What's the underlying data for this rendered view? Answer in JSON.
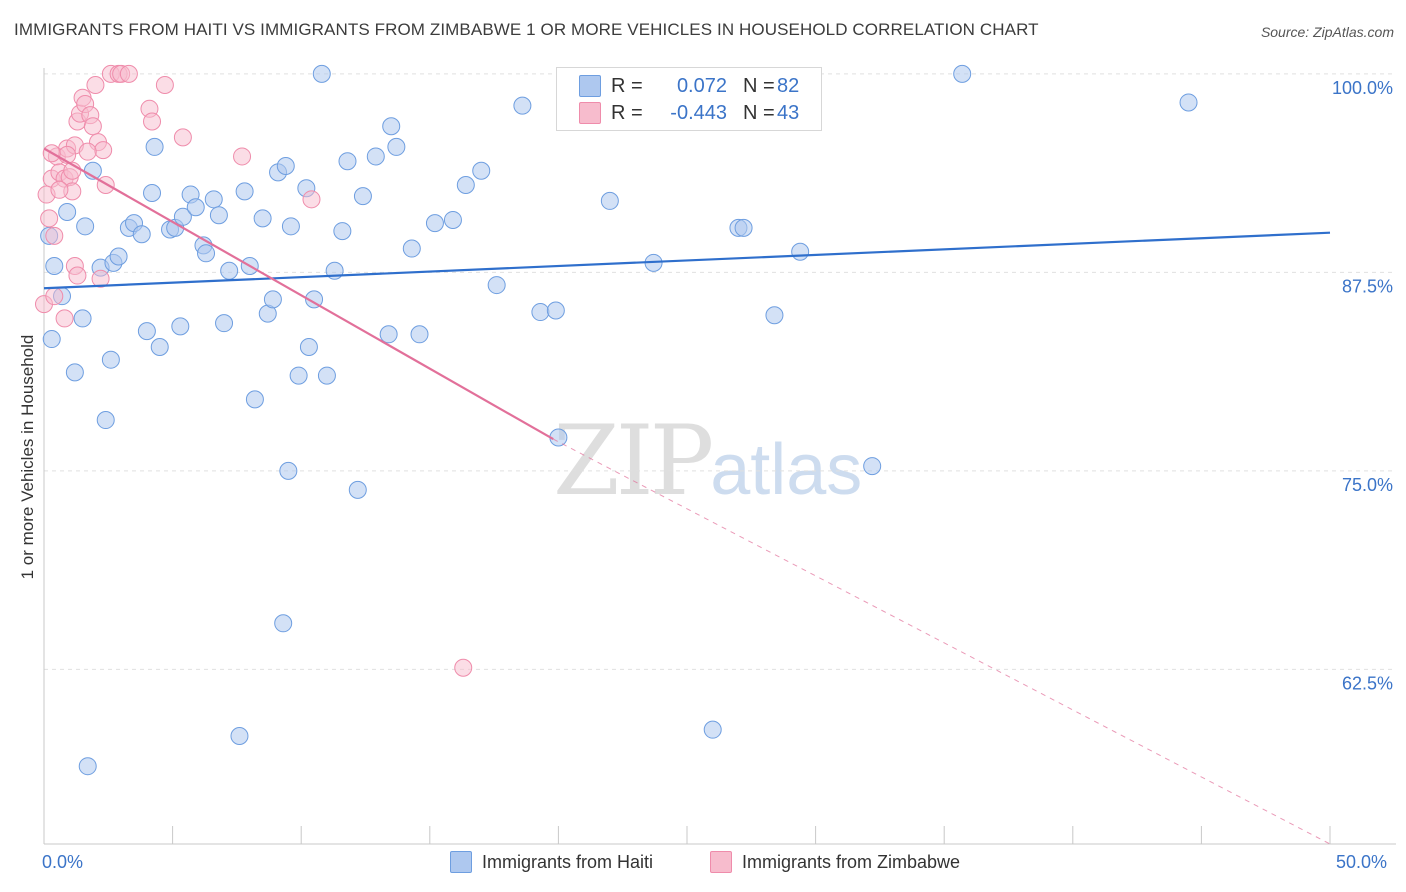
{
  "title": "IMMIGRANTS FROM HAITI VS IMMIGRANTS FROM ZIMBABWE 1 OR MORE VEHICLES IN HOUSEHOLD CORRELATION CHART",
  "source": "Source: ZipAtlas.com",
  "watermark": {
    "zip": "ZIP",
    "atlas": "atlas"
  },
  "legend": {
    "haiti": {
      "r_label": "R =",
      "r_value": "0.072",
      "n_label": "N =",
      "n_value": "82"
    },
    "zimbabwe": {
      "r_label": "R =",
      "r_value": "-0.443",
      "n_label": "N =",
      "n_value": "43"
    }
  },
  "colors": {
    "haiti_fill": "#aec8ef",
    "haiti_stroke": "#6e9ee0",
    "haiti_line": "#2f6fcc",
    "zim_fill": "#f7bccd",
    "zim_stroke": "#ef8cab",
    "zim_line": "#e2709a",
    "tick_text": "#3b74c8",
    "grid": "#e0e0e0"
  },
  "chart_data": {
    "type": "scatter",
    "title": "IMMIGRANTS FROM HAITI VS IMMIGRANTS FROM ZIMBABWE 1 OR MORE VEHICLES IN HOUSEHOLD CORRELATION CHART",
    "xlabel": "",
    "ylabel": "1 or more Vehicles in Household",
    "xlim": [
      0,
      50
    ],
    "ylim": [
      51.5,
      101.0
    ],
    "x_tick_labels": [
      "0.0%",
      "50.0%"
    ],
    "y_ticks": [
      100.0,
      87.5,
      75.0,
      62.5
    ],
    "y_tick_labels": [
      "100.0%",
      "87.5%",
      "75.0%",
      "62.5%"
    ],
    "legend_position": "bottom-center",
    "series": [
      {
        "name": "Immigrants from Haiti",
        "r": 0.072,
        "n": 82,
        "trend": {
          "x0": 0,
          "y0": 86.5,
          "x1": 50,
          "y1": 90.0
        },
        "points": [
          [
            0.2,
            89.8
          ],
          [
            0.4,
            87.9
          ],
          [
            0.7,
            86.0
          ],
          [
            0.9,
            91.3
          ],
          [
            1.2,
            81.2
          ],
          [
            1.5,
            84.6
          ],
          [
            1.6,
            90.4
          ],
          [
            1.9,
            93.9
          ],
          [
            2.2,
            87.8
          ],
          [
            2.4,
            78.2
          ],
          [
            2.7,
            88.1
          ],
          [
            2.9,
            88.5
          ],
          [
            3.3,
            90.3
          ],
          [
            3.5,
            90.6
          ],
          [
            3.8,
            89.9
          ],
          [
            4.0,
            83.8
          ],
          [
            4.2,
            92.5
          ],
          [
            4.3,
            95.4
          ],
          [
            4.5,
            82.8
          ],
          [
            4.9,
            90.2
          ],
          [
            5.1,
            90.3
          ],
          [
            5.3,
            84.1
          ],
          [
            5.4,
            91.0
          ],
          [
            5.7,
            92.4
          ],
          [
            5.9,
            91.6
          ],
          [
            6.2,
            89.2
          ],
          [
            6.3,
            88.7
          ],
          [
            6.6,
            92.1
          ],
          [
            6.8,
            91.1
          ],
          [
            7.0,
            84.3
          ],
          [
            7.2,
            87.6
          ],
          [
            7.6,
            58.3
          ],
          [
            7.8,
            92.6
          ],
          [
            8.0,
            87.9
          ],
          [
            8.2,
            79.5
          ],
          [
            8.5,
            90.9
          ],
          [
            8.7,
            84.9
          ],
          [
            8.9,
            85.8
          ],
          [
            9.1,
            93.8
          ],
          [
            9.5,
            75.0
          ],
          [
            9.6,
            90.4
          ],
          [
            9.9,
            81.0
          ],
          [
            10.2,
            92.8
          ],
          [
            10.3,
            82.8
          ],
          [
            10.5,
            85.8
          ],
          [
            11.0,
            81.0
          ],
          [
            11.3,
            87.6
          ],
          [
            11.6,
            90.1
          ],
          [
            11.8,
            94.5
          ],
          [
            12.4,
            92.3
          ],
          [
            12.9,
            94.8
          ],
          [
            13.4,
            83.6
          ],
          [
            13.5,
            96.7
          ],
          [
            13.7,
            95.4
          ],
          [
            14.3,
            89.0
          ],
          [
            14.6,
            83.6
          ],
          [
            15.2,
            90.6
          ],
          [
            15.9,
            90.8
          ],
          [
            16.4,
            93.0
          ],
          [
            17.0,
            93.9
          ],
          [
            17.6,
            86.7
          ],
          [
            18.6,
            98.0
          ],
          [
            19.3,
            85.0
          ],
          [
            19.9,
            85.1
          ],
          [
            20.0,
            77.1
          ],
          [
            22.0,
            92.0
          ],
          [
            23.7,
            88.1
          ],
          [
            26.0,
            58.7
          ],
          [
            27.0,
            90.3
          ],
          [
            27.2,
            90.3
          ],
          [
            28.4,
            84.8
          ],
          [
            29.4,
            88.8
          ],
          [
            32.2,
            75.3
          ],
          [
            35.7,
            100.0
          ],
          [
            44.5,
            98.2
          ],
          [
            10.8,
            100.0
          ],
          [
            9.4,
            94.2
          ],
          [
            1.7,
            56.4
          ],
          [
            2.6,
            82.0
          ],
          [
            9.3,
            65.4
          ],
          [
            0.3,
            83.3
          ],
          [
            12.2,
            73.8
          ]
        ]
      },
      {
        "name": "Immigrants from Zimbabwe",
        "r": -0.443,
        "n": 43,
        "trend": {
          "x0": 0,
          "y0": 95.3,
          "x1": 19.8,
          "y1": 77.0,
          "dash_x1": 50,
          "dash_y1": 51.5
        },
        "points": [
          [
            0.1,
            92.4
          ],
          [
            0.2,
            90.9
          ],
          [
            0.3,
            93.4
          ],
          [
            0.4,
            89.8
          ],
          [
            0.5,
            94.8
          ],
          [
            0.6,
            93.8
          ],
          [
            0.8,
            93.4
          ],
          [
            0.9,
            95.3
          ],
          [
            1.0,
            93.5
          ],
          [
            1.1,
            92.6
          ],
          [
            1.2,
            95.5
          ],
          [
            1.3,
            97.0
          ],
          [
            1.4,
            97.5
          ],
          [
            1.5,
            98.5
          ],
          [
            1.6,
            98.1
          ],
          [
            1.8,
            97.4
          ],
          [
            1.9,
            96.7
          ],
          [
            2.0,
            99.3
          ],
          [
            2.1,
            95.7
          ],
          [
            2.3,
            95.2
          ],
          [
            2.4,
            93.0
          ],
          [
            2.6,
            100.0
          ],
          [
            2.9,
            100.0
          ],
          [
            3.0,
            100.0
          ],
          [
            3.3,
            100.0
          ],
          [
            4.1,
            97.8
          ],
          [
            4.2,
            97.0
          ],
          [
            4.7,
            99.3
          ],
          [
            5.4,
            96.0
          ],
          [
            7.7,
            94.8
          ],
          [
            10.4,
            92.1
          ],
          [
            16.3,
            62.6
          ],
          [
            0.0,
            85.5
          ],
          [
            0.4,
            86.0
          ],
          [
            0.8,
            84.6
          ],
          [
            1.2,
            87.9
          ],
          [
            1.3,
            87.3
          ],
          [
            2.2,
            87.1
          ],
          [
            0.6,
            92.7
          ],
          [
            1.7,
            95.1
          ],
          [
            0.9,
            94.9
          ],
          [
            1.1,
            93.9
          ],
          [
            0.3,
            95.0
          ]
        ]
      }
    ]
  },
  "axis": {
    "x_min_label": "0.0%",
    "x_max_label": "50.0%"
  },
  "bottom_legend": {
    "haiti": "Immigrants from Haiti",
    "zimbabwe": "Immigrants from Zimbabwe"
  }
}
